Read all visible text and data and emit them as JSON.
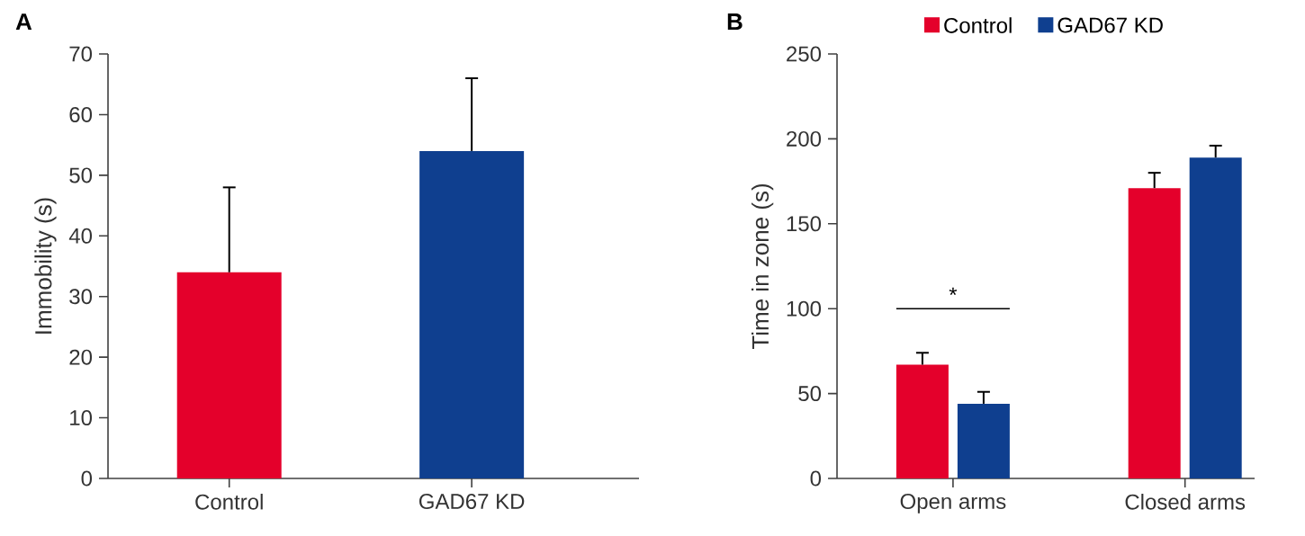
{
  "chart_data": [
    {
      "type": "bar",
      "title": "A",
      "categories": [
        "Control",
        "GAD67 KD"
      ],
      "values": [
        34,
        54
      ],
      "colors": [
        "#e4002b",
        "#0f3f8f"
      ],
      "errors": [
        [
          34,
          48
        ],
        [
          54,
          66
        ]
      ],
      "ylabel": "Immobility (s)",
      "ylim": [
        0,
        70
      ],
      "yticks": [
        0,
        10,
        20,
        30,
        40,
        50,
        60,
        70
      ]
    },
    {
      "type": "bar",
      "title": "B",
      "categories": [
        "Open arms",
        "Closed arms"
      ],
      "series": [
        {
          "name": "Control",
          "color": "#e4002b",
          "values": [
            67,
            171
          ],
          "errors": [
            [
              67,
              74
            ],
            [
              171,
              180
            ]
          ]
        },
        {
          "name": "GAD67 KD",
          "color": "#0f3f8f",
          "values": [
            44,
            189
          ],
          "errors": [
            [
              44,
              51
            ],
            [
              189,
              196
            ]
          ]
        }
      ],
      "ylabel": "Time in zone (s)",
      "ylim": [
        0,
        250
      ],
      "yticks": [
        0,
        50,
        100,
        150,
        200,
        250
      ],
      "legend": "top",
      "annotations": [
        "*"
      ]
    }
  ]
}
